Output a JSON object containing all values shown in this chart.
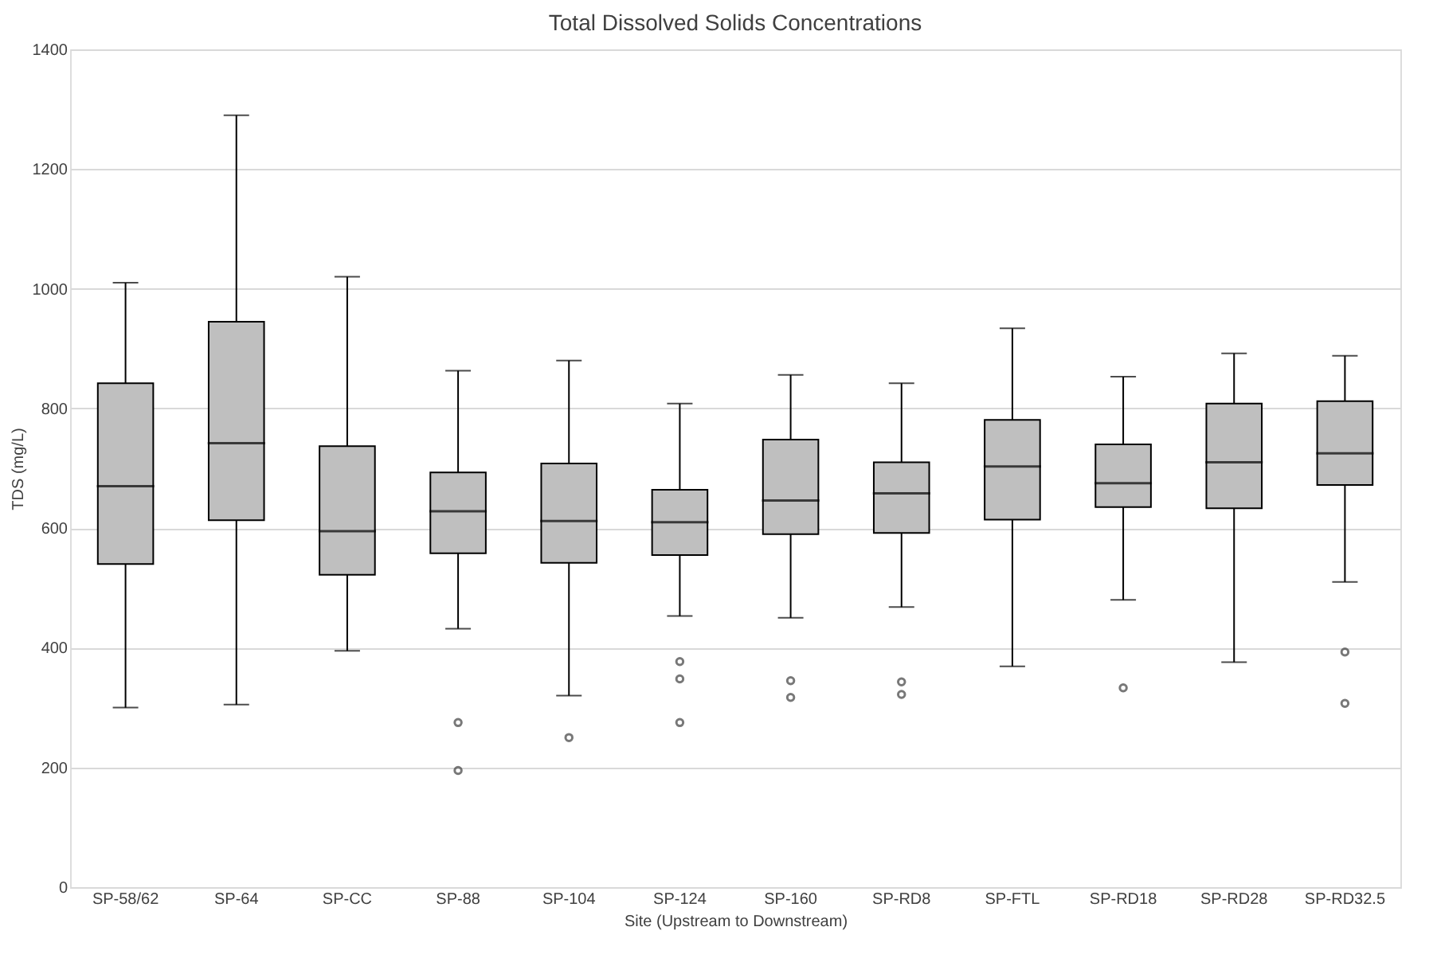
{
  "chart_data": {
    "type": "box",
    "title": "Total Dissolved Solids Concentrations",
    "xlabel": "Site (Upstream to Downstream)",
    "ylabel": "TDS (mg/L)",
    "categories": [
      "SP-58/62",
      "SP-64",
      "SP-CC",
      "SP-88",
      "SP-104",
      "SP-124",
      "SP-160",
      "SP-RD8",
      "SP-FTL",
      "SP-RD18",
      "SP-RD28",
      "SP-RD32.5"
    ],
    "series": [
      {
        "color": "#bfbfbf",
        "boxes": [
          {
            "low": 300,
            "q1": 540,
            "median": 670,
            "q3": 842,
            "high": 1010
          },
          {
            "low": 305,
            "q1": 613,
            "median": 742,
            "q3": 945,
            "high": 1290
          },
          {
            "low": 395,
            "q1": 522,
            "median": 595,
            "q3": 737,
            "high": 1020
          },
          {
            "low": 432,
            "q1": 558,
            "median": 628,
            "q3": 693,
            "high": 863,
            "outliers": [
              275,
              195
            ]
          },
          {
            "low": 320,
            "q1": 542,
            "median": 612,
            "q3": 708,
            "high": 880,
            "outliers": [
              250
            ]
          },
          {
            "low": 453,
            "q1": 555,
            "median": 610,
            "q3": 664,
            "high": 808,
            "outliers": [
              377,
              348,
              275
            ]
          },
          {
            "low": 450,
            "q1": 590,
            "median": 646,
            "q3": 748,
            "high": 856,
            "outliers": [
              345,
              317
            ]
          },
          {
            "low": 468,
            "q1": 592,
            "median": 658,
            "q3": 710,
            "high": 842,
            "outliers": [
              343,
              322
            ]
          },
          {
            "low": 369,
            "q1": 614,
            "median": 703,
            "q3": 781,
            "high": 934
          },
          {
            "low": 480,
            "q1": 635,
            "median": 675,
            "q3": 740,
            "high": 853,
            "outliers": [
              333
            ]
          },
          {
            "low": 376,
            "q1": 633,
            "median": 710,
            "q3": 808,
            "high": 892
          },
          {
            "low": 510,
            "q1": 672,
            "median": 725,
            "q3": 812,
            "high": 888,
            "outliers": [
              393,
              307
            ]
          }
        ]
      }
    ],
    "ylim": [
      0,
      1400
    ],
    "yticks": [
      0,
      200,
      400,
      600,
      800,
      1000,
      1200,
      1400
    ],
    "grid": "y"
  }
}
